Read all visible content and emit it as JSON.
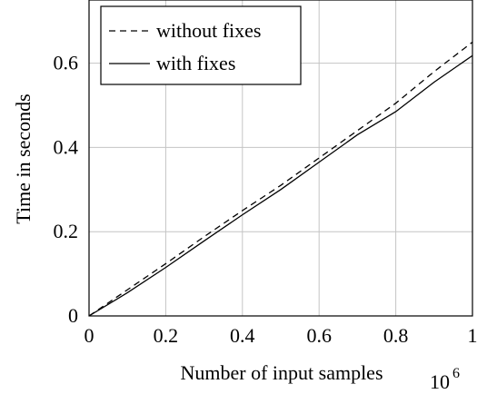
{
  "chart_data": {
    "type": "line",
    "xlabel": "Number of input samples",
    "ylabel": "Time in seconds",
    "x_multiplier": {
      "base": "10",
      "exponent": "6"
    },
    "xlim": [
      0,
      1
    ],
    "ylim": [
      0,
      0.75
    ],
    "x_ticks": [
      0,
      0.2,
      0.4,
      0.6,
      0.8,
      1
    ],
    "x_tick_labels": [
      "0",
      "0.2",
      "0.4",
      "0.6",
      "0.8",
      "1"
    ],
    "y_ticks": [
      0,
      0.2,
      0.4,
      0.6
    ],
    "y_tick_labels": [
      "0",
      "0.2",
      "0.4",
      "0.6"
    ],
    "grid": true,
    "legend_position": "top-left",
    "series": [
      {
        "name": "without fixes",
        "style": "dashed",
        "color": "#000000",
        "x": [
          0,
          0.1,
          0.2,
          0.3,
          0.4,
          0.5,
          0.6,
          0.7,
          0.8,
          0.9,
          1.0
        ],
        "y": [
          0,
          0.062,
          0.124,
          0.188,
          0.25,
          0.31,
          0.375,
          0.44,
          0.505,
          0.58,
          0.65
        ]
      },
      {
        "name": "with fixes",
        "style": "solid",
        "color": "#000000",
        "x": [
          0,
          0.1,
          0.2,
          0.3,
          0.4,
          0.5,
          0.6,
          0.7,
          0.8,
          0.9,
          1.0
        ],
        "y": [
          0,
          0.055,
          0.115,
          0.178,
          0.24,
          0.3,
          0.365,
          0.43,
          0.485,
          0.555,
          0.618
        ]
      }
    ]
  }
}
